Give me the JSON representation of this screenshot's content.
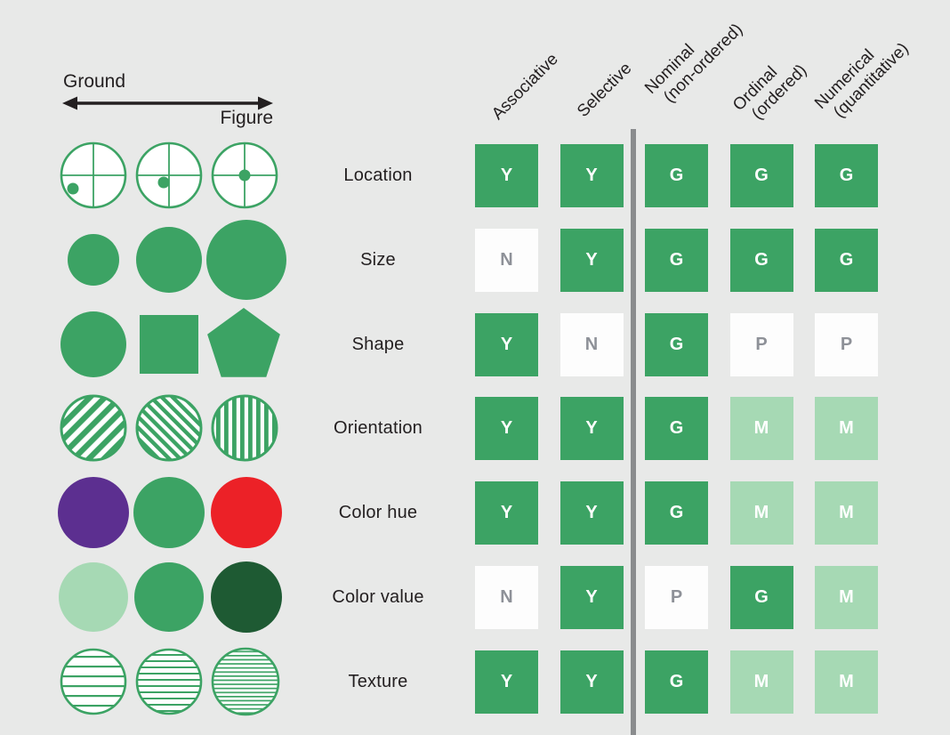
{
  "colors": {
    "background": "#e8e9e8",
    "green": "#3ca364",
    "light_green": "#a6d9b4",
    "dark_green": "#1e5a33",
    "purple": "#5c2f90",
    "red": "#ec2127",
    "white_cell": "#fdfdfd",
    "gray_letter": "#8e9198",
    "divider": "#8a8c8e",
    "text": "#231f20"
  },
  "legend": {
    "ground": "Ground",
    "figure": "Figure"
  },
  "figure_examples": [
    {
      "id": "location",
      "glyphs": [
        "circle-crosshair-dot-lower-left",
        "circle-crosshair-dot-left-of-center",
        "circle-crosshair-dot-center"
      ]
    },
    {
      "id": "size",
      "glyphs": [
        "small-green-circle",
        "medium-green-circle",
        "large-green-circle"
      ]
    },
    {
      "id": "shape",
      "glyphs": [
        "green-circle",
        "green-square",
        "green-pentagon"
      ]
    },
    {
      "id": "orientation",
      "glyphs": [
        "circle-diagonal-stripes-up-right",
        "circle-diagonal-stripes-down-right",
        "circle-vertical-stripes"
      ]
    },
    {
      "id": "color-hue",
      "glyphs": [
        "purple-circle",
        "green-circle",
        "red-circle"
      ]
    },
    {
      "id": "color-value",
      "glyphs": [
        "light-green-circle",
        "medium-green-circle",
        "dark-green-circle"
      ]
    },
    {
      "id": "texture",
      "glyphs": [
        "circle-sparse-horizontal-lines",
        "circle-medium-horizontal-lines",
        "circle-dense-horizontal-lines"
      ]
    }
  ],
  "matrix": {
    "columns": [
      {
        "id": "associative",
        "line1": "Associative",
        "line2": ""
      },
      {
        "id": "selective",
        "line1": "Selective",
        "line2": ""
      },
      {
        "id": "nominal",
        "line1": "Nominal",
        "line2": "(non-ordered)"
      },
      {
        "id": "ordinal",
        "line1": "Ordinal",
        "line2": "(ordered)"
      },
      {
        "id": "numerical",
        "line1": "Numerical",
        "line2": "(quantitative)"
      }
    ],
    "rows": [
      {
        "id": "location",
        "label": "Location",
        "cells": [
          {
            "letter": "Y",
            "style": "green"
          },
          {
            "letter": "Y",
            "style": "green"
          },
          {
            "letter": "G",
            "style": "green"
          },
          {
            "letter": "G",
            "style": "green"
          },
          {
            "letter": "G",
            "style": "green"
          }
        ]
      },
      {
        "id": "size",
        "label": "Size",
        "cells": [
          {
            "letter": "N",
            "style": "white"
          },
          {
            "letter": "Y",
            "style": "green"
          },
          {
            "letter": "G",
            "style": "green"
          },
          {
            "letter": "G",
            "style": "green"
          },
          {
            "letter": "G",
            "style": "green"
          }
        ]
      },
      {
        "id": "shape",
        "label": "Shape",
        "cells": [
          {
            "letter": "Y",
            "style": "green"
          },
          {
            "letter": "N",
            "style": "white"
          },
          {
            "letter": "G",
            "style": "green"
          },
          {
            "letter": "P",
            "style": "white"
          },
          {
            "letter": "P",
            "style": "white"
          }
        ]
      },
      {
        "id": "orientation",
        "label": "Orientation",
        "cells": [
          {
            "letter": "Y",
            "style": "green"
          },
          {
            "letter": "Y",
            "style": "green"
          },
          {
            "letter": "G",
            "style": "green"
          },
          {
            "letter": "M",
            "style": "light"
          },
          {
            "letter": "M",
            "style": "light"
          }
        ]
      },
      {
        "id": "color-hue",
        "label": "Color hue",
        "cells": [
          {
            "letter": "Y",
            "style": "green"
          },
          {
            "letter": "Y",
            "style": "green"
          },
          {
            "letter": "G",
            "style": "green"
          },
          {
            "letter": "M",
            "style": "light"
          },
          {
            "letter": "M",
            "style": "light"
          }
        ]
      },
      {
        "id": "color-value",
        "label": "Color value",
        "cells": [
          {
            "letter": "N",
            "style": "white"
          },
          {
            "letter": "Y",
            "style": "green"
          },
          {
            "letter": "P",
            "style": "white"
          },
          {
            "letter": "G",
            "style": "green"
          },
          {
            "letter": "M",
            "style": "light"
          }
        ]
      },
      {
        "id": "texture",
        "label": "Texture",
        "cells": [
          {
            "letter": "Y",
            "style": "green"
          },
          {
            "letter": "Y",
            "style": "green"
          },
          {
            "letter": "G",
            "style": "green"
          },
          {
            "letter": "M",
            "style": "light"
          },
          {
            "letter": "M",
            "style": "light"
          }
        ]
      }
    ]
  }
}
